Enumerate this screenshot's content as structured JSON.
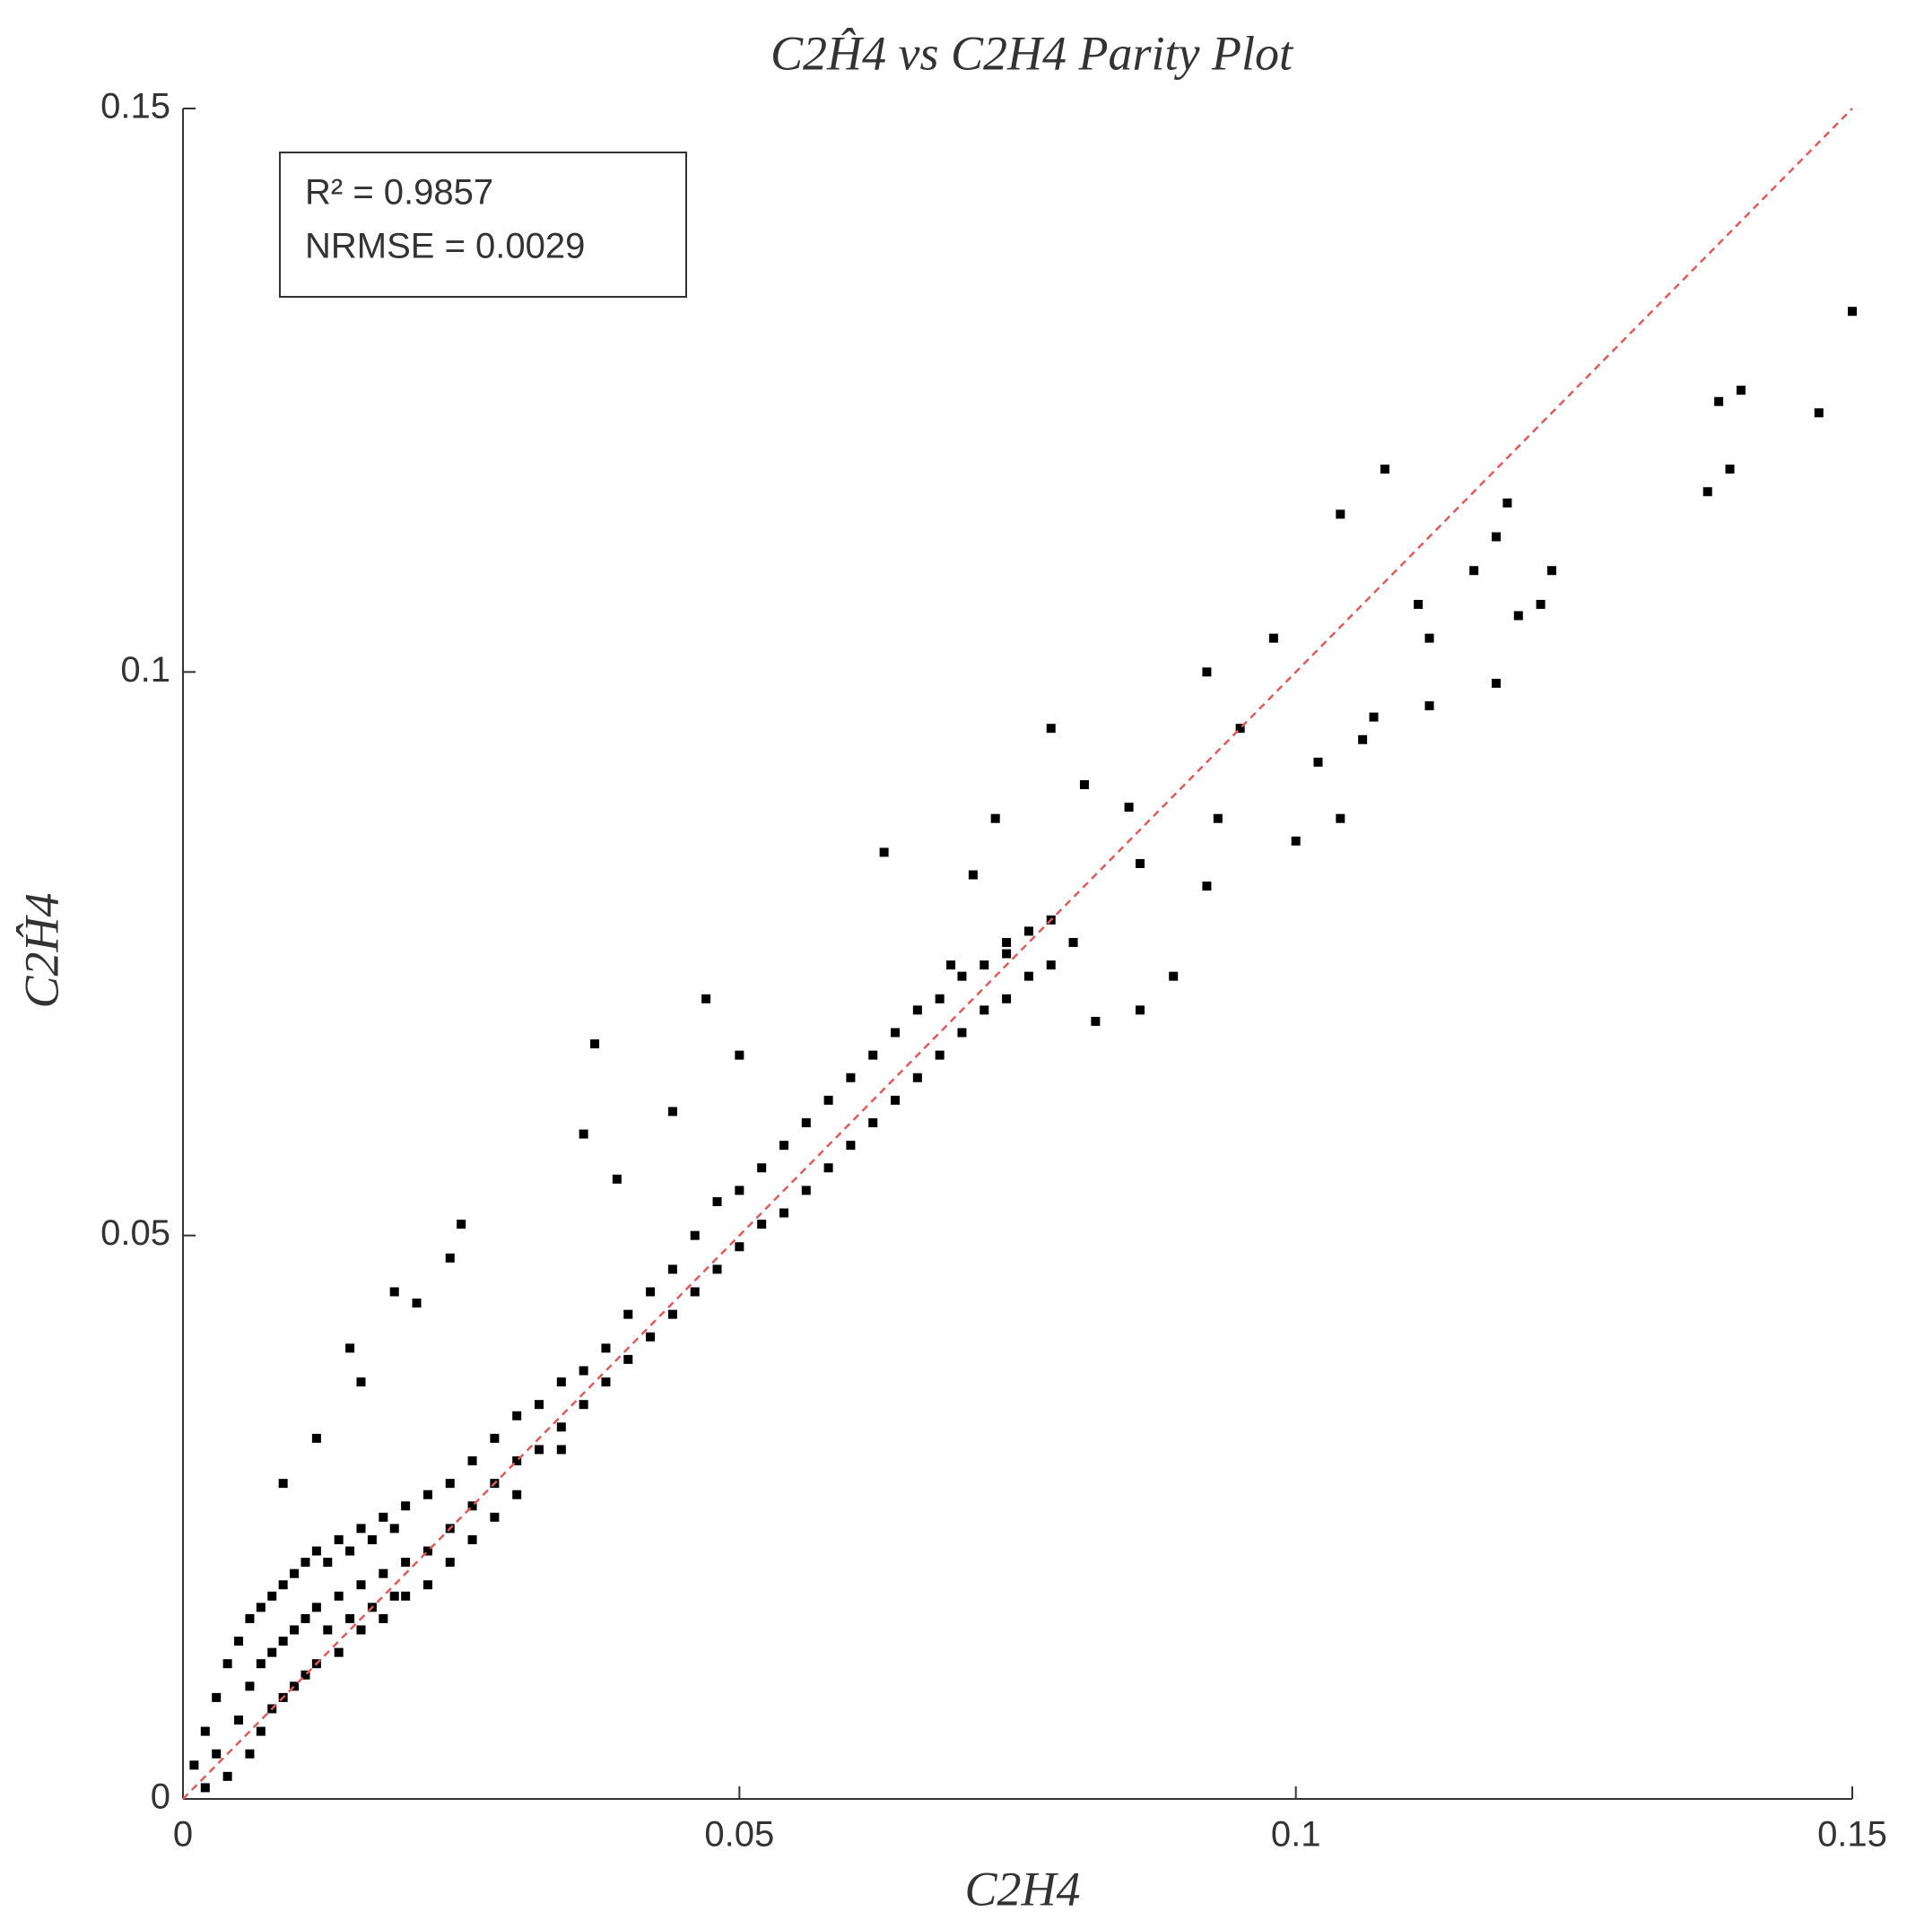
{
  "chart_data": {
    "type": "scatter",
    "title": "C2Ĥ4 vs C2H4 Parity Plot",
    "x_label": "C2H4",
    "y_label": "C2Ĥ4",
    "annotations": [
      "R² = 0.9857",
      "NRMSE = 0.0029"
    ],
    "color": "#000000",
    "diagonal_color": "#e05a5a",
    "xlim": [
      0,
      0.15
    ],
    "ylim": [
      0,
      0.15
    ],
    "xticks": [
      0,
      0.05,
      0.1,
      0.15
    ],
    "yticks": [
      0,
      0.05,
      0.1,
      0.15
    ],
    "x": [
      0.001,
      0.002,
      0.002,
      0.003,
      0.003,
      0.004,
      0.004,
      0.005,
      0.005,
      0.006,
      0.006,
      0.006,
      0.007,
      0.007,
      0.007,
      0.008,
      0.008,
      0.008,
      0.009,
      0.009,
      0.009,
      0.01,
      0.01,
      0.01,
      0.011,
      0.011,
      0.011,
      0.012,
      0.012,
      0.012,
      0.013,
      0.013,
      0.014,
      0.014,
      0.014,
      0.015,
      0.015,
      0.016,
      0.016,
      0.016,
      0.017,
      0.017,
      0.018,
      0.018,
      0.018,
      0.019,
      0.019,
      0.02,
      0.02,
      0.02,
      0.022,
      0.022,
      0.022,
      0.024,
      0.024,
      0.024,
      0.026,
      0.026,
      0.026,
      0.028,
      0.028,
      0.028,
      0.03,
      0.03,
      0.03,
      0.032,
      0.032,
      0.034,
      0.034,
      0.034,
      0.036,
      0.036,
      0.038,
      0.038,
      0.04,
      0.04,
      0.042,
      0.042,
      0.044,
      0.044,
      0.046,
      0.046,
      0.048,
      0.048,
      0.05,
      0.05,
      0.052,
      0.052,
      0.054,
      0.054,
      0.056,
      0.056,
      0.058,
      0.058,
      0.06,
      0.06,
      0.062,
      0.062,
      0.064,
      0.064,
      0.066,
      0.066,
      0.068,
      0.068,
      0.07,
      0.07,
      0.072,
      0.072,
      0.074,
      0.074,
      0.076,
      0.076,
      0.078,
      0.078,
      0.08,
      0.15,
      0.14,
      0.138,
      0.147,
      0.137,
      0.139,
      0.108,
      0.104,
      0.119,
      0.118,
      0.123,
      0.12,
      0.122,
      0.111,
      0.116,
      0.112,
      0.098,
      0.092,
      0.095,
      0.118,
      0.107,
      0.112,
      0.102,
      0.106,
      0.093,
      0.104,
      0.1,
      0.085,
      0.078,
      0.081,
      0.073,
      0.063,
      0.071,
      0.086,
      0.092,
      0.089,
      0.082,
      0.086,
      0.074,
      0.069,
      0.047,
      0.037,
      0.05,
      0.044,
      0.036,
      0.039,
      0.025,
      0.024,
      0.019,
      0.021,
      0.016,
      0.012,
      0.015,
      0.009
    ],
    "values": [
      0.003,
      0.006,
      0.001,
      0.009,
      0.004,
      0.012,
      0.002,
      0.014,
      0.007,
      0.016,
      0.01,
      0.004,
      0.017,
      0.012,
      0.006,
      0.018,
      0.013,
      0.008,
      0.019,
      0.014,
      0.009,
      0.02,
      0.015,
      0.01,
      0.021,
      0.016,
      0.011,
      0.022,
      0.017,
      0.012,
      0.021,
      0.015,
      0.023,
      0.018,
      0.013,
      0.022,
      0.016,
      0.024,
      0.019,
      0.015,
      0.023,
      0.017,
      0.025,
      0.02,
      0.016,
      0.024,
      0.018,
      0.026,
      0.021,
      0.018,
      0.027,
      0.022,
      0.019,
      0.028,
      0.024,
      0.021,
      0.03,
      0.026,
      0.023,
      0.032,
      0.028,
      0.025,
      0.034,
      0.03,
      0.027,
      0.035,
      0.031,
      0.037,
      0.033,
      0.031,
      0.038,
      0.035,
      0.04,
      0.037,
      0.043,
      0.039,
      0.045,
      0.041,
      0.047,
      0.043,
      0.05,
      0.045,
      0.053,
      0.047,
      0.054,
      0.049,
      0.056,
      0.051,
      0.058,
      0.052,
      0.06,
      0.054,
      0.062,
      0.056,
      0.064,
      0.058,
      0.066,
      0.06,
      0.068,
      0.062,
      0.07,
      0.064,
      0.071,
      0.066,
      0.073,
      0.068,
      0.074,
      0.07,
      0.076,
      0.071,
      0.077,
      0.073,
      0.078,
      0.074,
      0.076,
      0.132,
      0.125,
      0.124,
      0.123,
      0.116,
      0.118,
      0.118,
      0.114,
      0.115,
      0.112,
      0.109,
      0.105,
      0.106,
      0.106,
      0.109,
      0.103,
      0.103,
      0.1,
      0.095,
      0.099,
      0.096,
      0.097,
      0.092,
      0.094,
      0.087,
      0.087,
      0.085,
      0.088,
      0.095,
      0.09,
      0.087,
      0.084,
      0.082,
      0.083,
      0.081,
      0.073,
      0.069,
      0.07,
      0.075,
      0.074,
      0.071,
      0.067,
      0.066,
      0.061,
      0.059,
      0.055,
      0.051,
      0.048,
      0.045,
      0.044,
      0.037,
      0.032,
      0.04,
      0.028
    ]
  }
}
